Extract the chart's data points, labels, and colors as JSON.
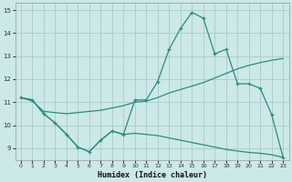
{
  "xlabel": "Humidex (Indice chaleur)",
  "x_values": [
    0,
    1,
    2,
    3,
    4,
    5,
    6,
    7,
    8,
    9,
    10,
    11,
    12,
    13,
    14,
    15,
    16,
    17,
    18,
    19,
    20,
    21,
    22,
    23
  ],
  "line_top": [
    11.2,
    11.1,
    10.5,
    10.1,
    9.6,
    9.05,
    8.85,
    9.35,
    9.75,
    9.6,
    11.1,
    11.1,
    11.9,
    13.3,
    14.2,
    14.9,
    14.65,
    13.1,
    13.3,
    11.8,
    11.8,
    11.6,
    10.45,
    8.6
  ],
  "line_mid": [
    11.2,
    11.05,
    10.6,
    10.55,
    10.5,
    10.55,
    10.6,
    10.65,
    10.75,
    10.85,
    11.0,
    11.05,
    11.2,
    11.4,
    11.55,
    11.7,
    11.85,
    12.05,
    12.25,
    12.45,
    12.6,
    12.72,
    12.82,
    12.9
  ],
  "line_bot": [
    11.2,
    11.1,
    10.5,
    10.1,
    9.6,
    9.05,
    8.85,
    9.35,
    9.75,
    9.6,
    9.65,
    9.6,
    9.55,
    9.45,
    9.35,
    9.25,
    9.15,
    9.05,
    8.95,
    8.88,
    8.82,
    8.78,
    8.72,
    8.6
  ],
  "color": "#2e8b7a",
  "bg_color": "#cce8e8",
  "grid_color": "#aacccc",
  "ylim": [
    8.5,
    15.3
  ],
  "xlim": [
    -0.5,
    23.5
  ],
  "yticks": [
    9,
    10,
    11,
    12,
    13,
    14,
    15
  ],
  "xticks": [
    0,
    1,
    2,
    3,
    4,
    5,
    6,
    7,
    8,
    9,
    10,
    11,
    12,
    13,
    14,
    15,
    16,
    17,
    18,
    19,
    20,
    21,
    22,
    23
  ]
}
